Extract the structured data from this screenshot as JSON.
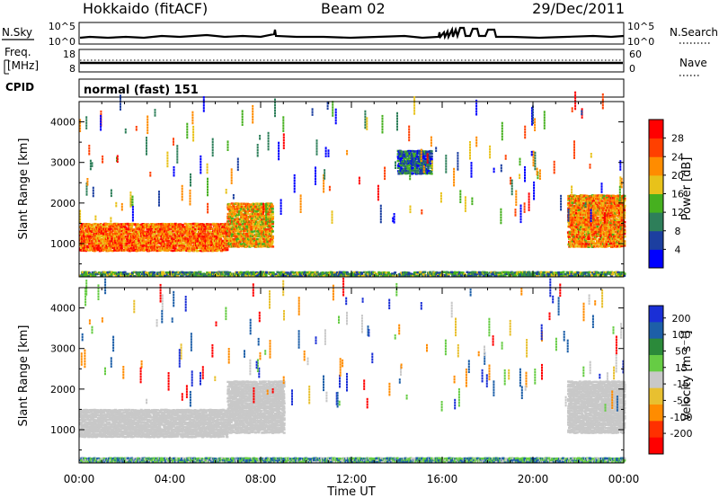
{
  "header": {
    "station": "Hokkaido (fitACF)",
    "beam": "Beam 02",
    "date": "29/Dec/2011"
  },
  "strips": {
    "nsky": {
      "label": "N.Sky",
      "ticks": [
        "10^5",
        "10^0"
      ]
    },
    "nsearch": {
      "label": "N.Search",
      "ticks": [
        "10^5",
        "10^0"
      ]
    },
    "freq": {
      "label_top": "Freq.",
      "label_bottom": "[MHz]",
      "ticks": [
        "18",
        "8"
      ]
    },
    "nave": {
      "label": "Nave",
      "ticks": [
        "60",
        "0"
      ]
    },
    "cpid": {
      "label": "CPID",
      "mode": "normal (fast) 151"
    }
  },
  "colors": {
    "power_scale": [
      "#0000ff",
      "#1c3fa0",
      "#2e7f5a",
      "#46b01f",
      "#e8c21a",
      "#ff8c00",
      "#ff4000",
      "#ff0000"
    ],
    "velocity_scale": [
      "#1a2fd6",
      "#1d5fa8",
      "#2b8a3a",
      "#66cc44",
      "#c8c8c8",
      "#e8c030",
      "#ff8c00",
      "#ff3000",
      "#ff0000"
    ]
  },
  "chart_data": [
    {
      "type": "heatmap",
      "name": "power",
      "xlabel": "",
      "ylabel": "Slant Range [km]",
      "xlim": [
        0,
        24
      ],
      "ylim": [
        180,
        4500
      ],
      "yticks": [
        1000,
        2000,
        3000,
        4000
      ],
      "colorbar": {
        "label": "Power [dB]",
        "ticks": [
          4,
          8,
          12,
          16,
          20,
          24,
          28
        ],
        "range": [
          0,
          32
        ]
      },
      "regions": [
        {
          "hours": [
            0,
            6.5
          ],
          "range_km": [
            800,
            1500
          ],
          "value_db": 24
        },
        {
          "hours": [
            6.5,
            8.5
          ],
          "range_km": [
            900,
            2000
          ],
          "value_db": 20
        },
        {
          "hours": [
            21.5,
            24
          ],
          "range_km": [
            900,
            2200
          ],
          "value_db": 22
        },
        {
          "hours": [
            14,
            15.5
          ],
          "range_km": [
            2700,
            3300
          ],
          "value_db": 8
        },
        {
          "hours": [
            0,
            24
          ],
          "range_km": [
            180,
            300
          ],
          "value_db": 12
        }
      ]
    },
    {
      "type": "heatmap",
      "name": "velocity",
      "xlabel": "Time UT",
      "ylabel": "Slant Range [km]",
      "xlim": [
        0,
        24
      ],
      "ylim": [
        180,
        4500
      ],
      "yticks": [
        1000,
        2000,
        3000,
        4000
      ],
      "x_tick_labels": [
        "00:00",
        "04:00",
        "08:00",
        "12:00",
        "16:00",
        "20:00",
        "00:00"
      ],
      "colorbar": {
        "label": "Velocity [m s⁻¹]",
        "ticks": [
          200,
          100,
          50,
          15,
          -15,
          -50,
          -100,
          -200
        ]
      },
      "regions": [
        {
          "hours": [
            0,
            6.5
          ],
          "range_km": [
            800,
            1500
          ],
          "value_ms": 0
        },
        {
          "hours": [
            6.5,
            9
          ],
          "range_km": [
            900,
            2200
          ],
          "value_ms": 0
        },
        {
          "hours": [
            21.5,
            24
          ],
          "range_km": [
            900,
            2200
          ],
          "value_ms": 0
        },
        {
          "hours": [
            0,
            24
          ],
          "range_km": [
            180,
            300
          ],
          "value_ms": 40
        }
      ]
    }
  ]
}
